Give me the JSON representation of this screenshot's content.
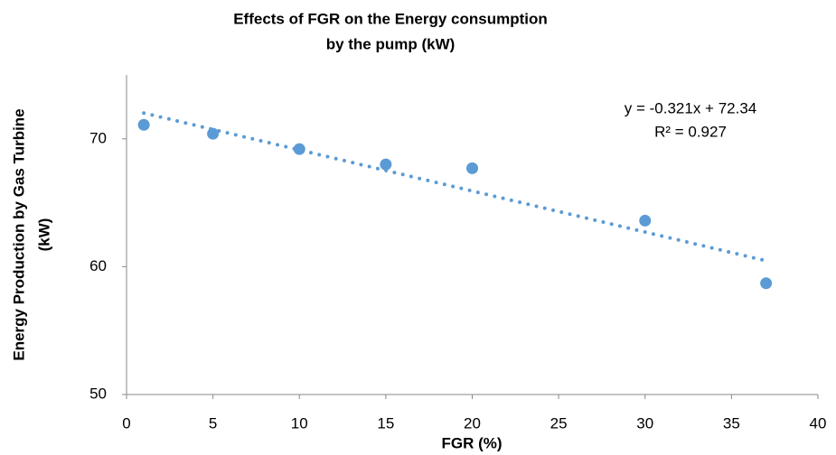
{
  "chart_data": {
    "type": "scatter",
    "title": [
      "Effects of FGR on the Energy consumption",
      "by the pump  (kW)"
    ],
    "x_label": "FGR (%)",
    "y_label": [
      "Energy Production by Gas Turbine",
      "(kW)"
    ],
    "series": [
      {
        "name": "Energy Production",
        "color": "#5b9bd5",
        "x": [
          1,
          5,
          10,
          15,
          20,
          30,
          37
        ],
        "values": [
          71.1,
          70.4,
          69.2,
          68.0,
          67.7,
          63.6,
          58.7
        ]
      }
    ],
    "trendline": {
      "slope": -0.321,
      "intercept": 72.34,
      "equation": "y = -0.321x + 72.34",
      "r2": "R² = 0.927"
    },
    "xlim": [
      0,
      40
    ],
    "xticks": [
      0,
      5,
      10,
      15,
      20,
      25,
      30,
      35,
      40
    ],
    "ylim": [
      50,
      75
    ],
    "yticks": [
      50,
      60,
      70
    ],
    "grid": false
  }
}
